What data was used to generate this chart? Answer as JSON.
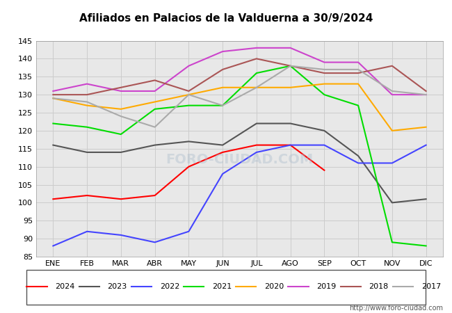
{
  "title": "Afiliados en Palacios de la Valduerna a 30/9/2024",
  "xlabel": "",
  "ylabel": "",
  "ylim": [
    85,
    145
  ],
  "yticks": [
    85,
    90,
    95,
    100,
    105,
    110,
    115,
    120,
    125,
    130,
    135,
    140,
    145
  ],
  "months": [
    "ENE",
    "FEB",
    "MAR",
    "ABR",
    "MAY",
    "JUN",
    "JUL",
    "AGO",
    "SEP",
    "OCT",
    "NOV",
    "DIC"
  ],
  "series": {
    "2024": {
      "color": "#ff0000",
      "data": [
        101,
        102,
        101,
        102,
        110,
        114,
        116,
        116,
        109,
        null,
        null,
        null
      ]
    },
    "2023": {
      "color": "#555555",
      "data": [
        116,
        114,
        114,
        116,
        117,
        116,
        122,
        122,
        120,
        113,
        100,
        101
      ]
    },
    "2022": {
      "color": "#4444ff",
      "data": [
        88,
        92,
        91,
        89,
        92,
        108,
        114,
        116,
        116,
        111,
        111,
        116
      ]
    },
    "2021": {
      "color": "#00dd00",
      "data": [
        122,
        121,
        119,
        126,
        127,
        127,
        136,
        138,
        130,
        127,
        89,
        88
      ]
    },
    "2020": {
      "color": "#ffaa00",
      "data": [
        129,
        127,
        126,
        128,
        130,
        132,
        132,
        132,
        133,
        133,
        120,
        121
      ]
    },
    "2019": {
      "color": "#cc44cc",
      "data": [
        131,
        133,
        131,
        131,
        138,
        142,
        143,
        143,
        139,
        139,
        130,
        130
      ]
    },
    "2018": {
      "color": "#aa5555",
      "data": [
        130,
        130,
        132,
        134,
        131,
        137,
        140,
        138,
        136,
        136,
        138,
        131
      ]
    },
    "2017": {
      "color": "#aaaaaa",
      "data": [
        129,
        128,
        124,
        121,
        130,
        127,
        132,
        138,
        137,
        137,
        131,
        130
      ]
    }
  },
  "legend_order": [
    "2024",
    "2023",
    "2022",
    "2021",
    "2020",
    "2019",
    "2018",
    "2017"
  ],
  "watermark": "FORO-CIUDAD.COM",
  "url": "http://www.foro-ciudad.com",
  "bg_color": "#ffffff",
  "grid_color": "#cccccc",
  "plot_bg_color": "#e8e8e8",
  "title_bg_color": "#5599ff",
  "title_font_color": "#000000",
  "title_fontsize": 11
}
